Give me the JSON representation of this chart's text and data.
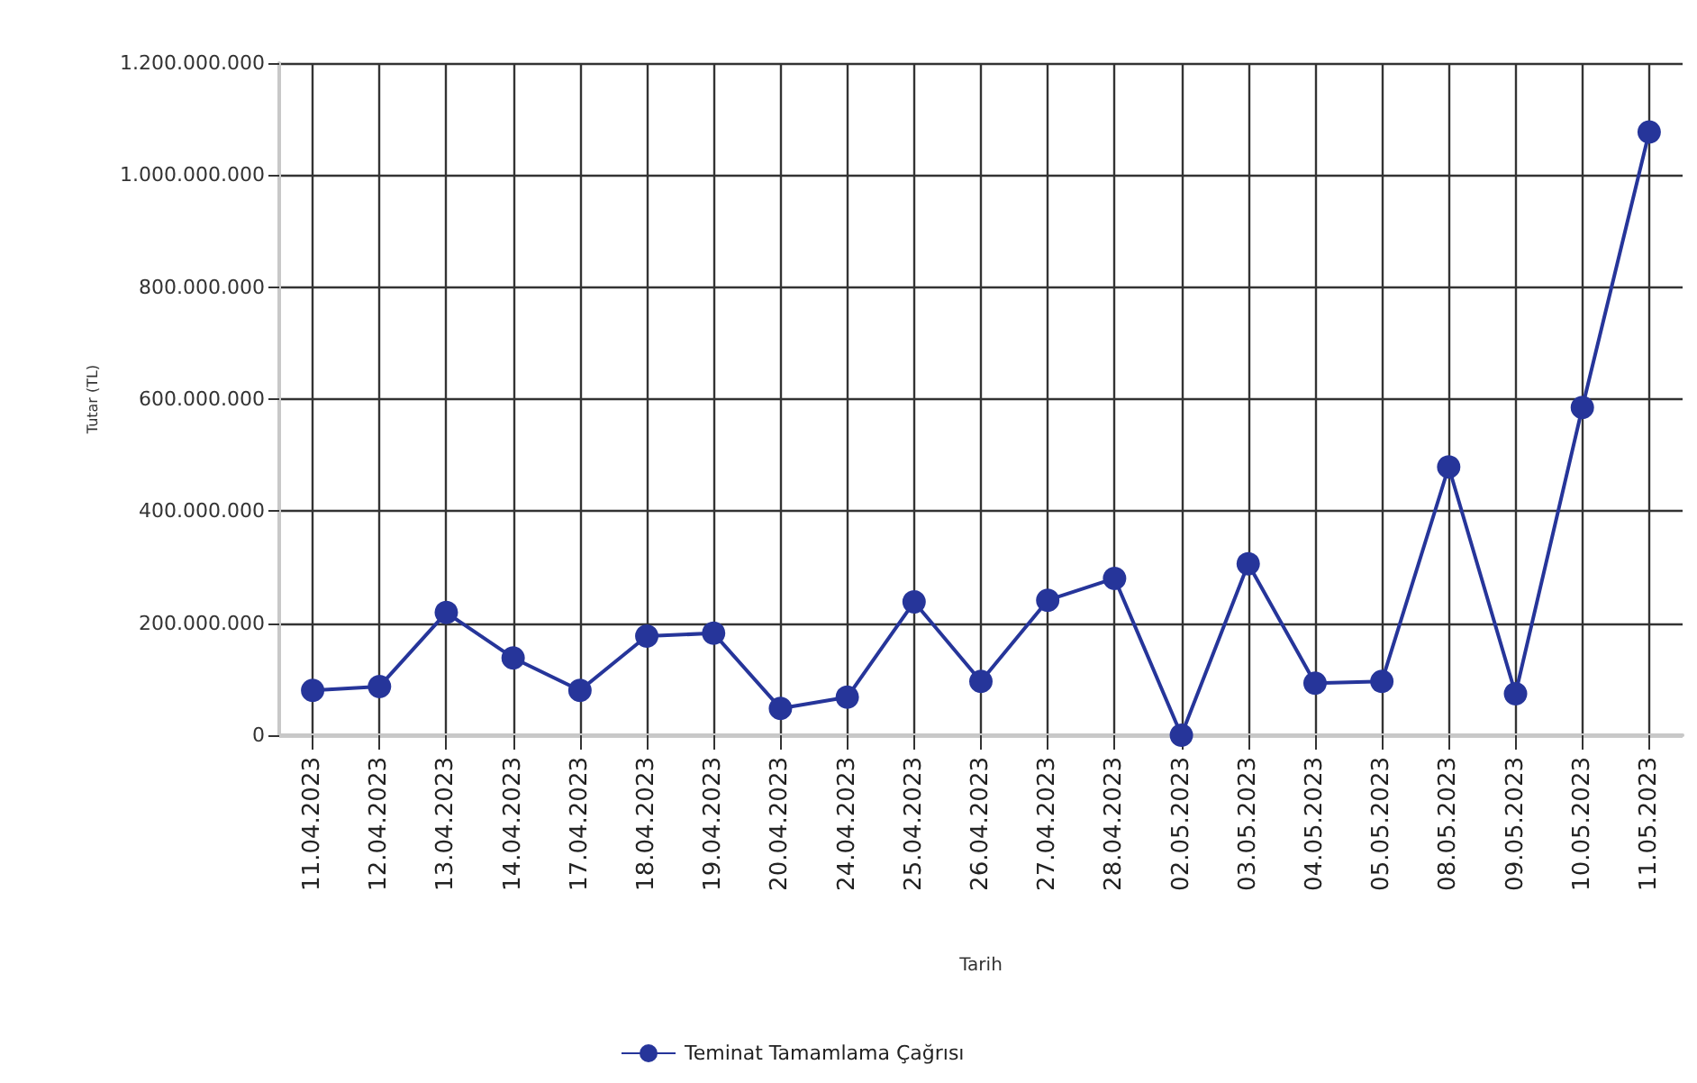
{
  "chart_data": {
    "type": "line",
    "xlabel": "Tarih",
    "ylabel": "Tutar (TL)",
    "categories": [
      "11.04.2023",
      "12.04.2023",
      "13.04.2023",
      "14.04.2023",
      "17.04.2023",
      "18.04.2023",
      "19.04.2023",
      "20.04.2023",
      "24.04.2023",
      "25.04.2023",
      "26.04.2023",
      "27.04.2023",
      "28.04.2023",
      "02.05.2023",
      "03.05.2023",
      "04.05.2023",
      "05.05.2023",
      "08.05.2023",
      "09.05.2023",
      "10.05.2023",
      "11.05.2023"
    ],
    "series": [
      {
        "name": "Teminat Tamamlama Çağrısı",
        "color": "#26359a",
        "values": [
          80000000,
          87000000,
          219000000,
          138000000,
          80000000,
          177000000,
          182000000,
          48000000,
          68000000,
          238000000,
          96000000,
          241000000,
          280000000,
          0,
          306000000,
          93000000,
          96000000,
          479000000,
          74000000,
          585000000,
          1077000000
        ]
      }
    ],
    "ylim": [
      0,
      1200000000
    ],
    "yticks": [
      {
        "value": 0,
        "label": "0"
      },
      {
        "value": 200000000,
        "label": "200.000.000"
      },
      {
        "value": 400000000,
        "label": "400.000.000"
      },
      {
        "value": 600000000,
        "label": "600.000.000"
      },
      {
        "value": 800000000,
        "label": "800.000.000"
      },
      {
        "value": 1000000000,
        "label": "1.000.000.000"
      },
      {
        "value": 1200000000,
        "label": "1.200.000.000"
      }
    ],
    "grid": true,
    "legend": "bottom",
    "marker": "circle",
    "line_style": "solid"
  }
}
